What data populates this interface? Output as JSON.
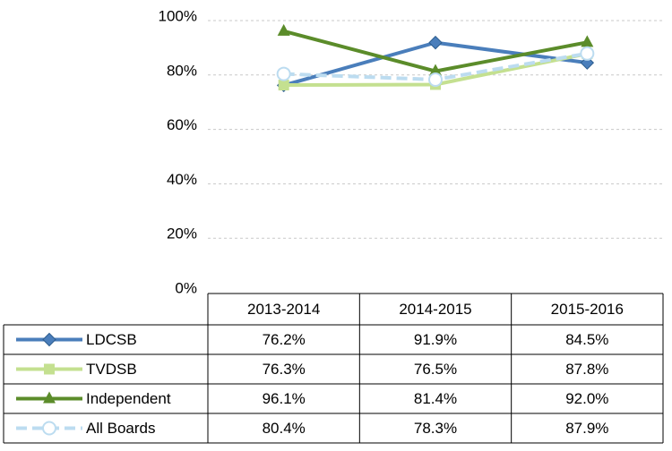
{
  "chart_data": {
    "type": "line",
    "categories": [
      "2013-2014",
      "2014-2015",
      "2015-2016"
    ],
    "series": [
      {
        "name": "LDCSB",
        "color": "#4a7ebb",
        "marker": "diamond",
        "values": [
          76.2,
          91.9,
          84.5
        ],
        "value_labels": [
          "76.2%",
          "91.9%",
          "84.5%"
        ]
      },
      {
        "name": "TVDSB",
        "color": "#c4e090",
        "marker": "square",
        "values": [
          76.3,
          76.5,
          87.8
        ],
        "value_labels": [
          "76.3%",
          "76.5%",
          "87.8%"
        ]
      },
      {
        "name": "Independent",
        "color": "#5b8c2a",
        "marker": "triangle",
        "values": [
          96.1,
          81.4,
          92.0
        ],
        "value_labels": [
          "96.1%",
          "81.4%",
          "92.0%"
        ]
      },
      {
        "name": "All Boards",
        "color": "#bcdcf0",
        "marker": "circle",
        "dashed": true,
        "values": [
          80.4,
          78.3,
          87.9
        ],
        "value_labels": [
          "80.4%",
          "78.3%",
          "87.9%"
        ]
      }
    ],
    "ylim": [
      0,
      100
    ],
    "yticks": [
      {
        "value": 0,
        "label": "0%"
      },
      {
        "value": 20,
        "label": "20%"
      },
      {
        "value": 40,
        "label": "40%"
      },
      {
        "value": 60,
        "label": "60%"
      },
      {
        "value": 80,
        "label": "80%"
      },
      {
        "value": 100,
        "label": "100%"
      }
    ],
    "grid": true
  }
}
